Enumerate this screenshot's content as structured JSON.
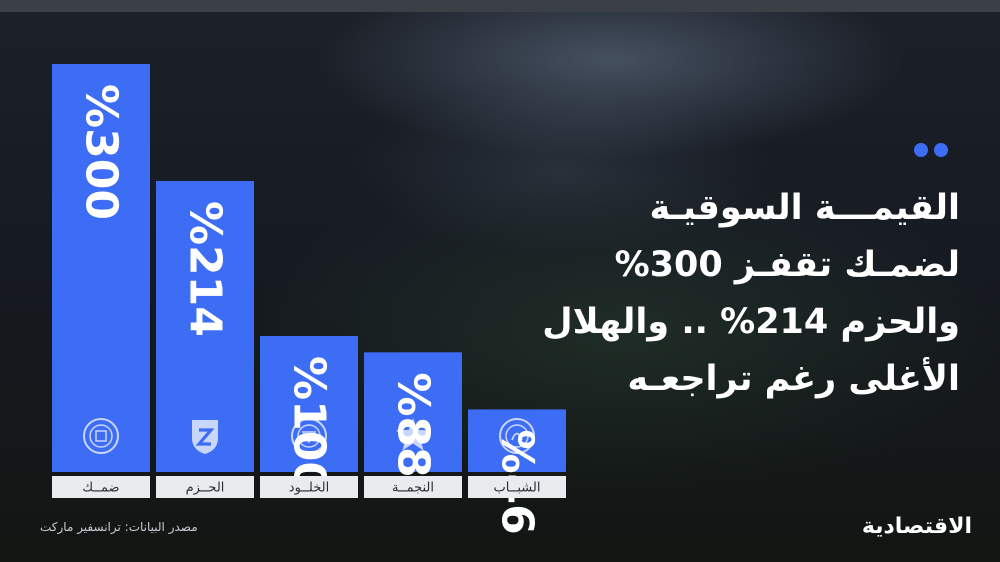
{
  "headline": {
    "line1": "القيمـــة السوقيـة",
    "line2": "لضمـك تقفـز 300%",
    "line3": "والحزم 214% .. والهلال",
    "line4": "الأغلى رغم تراجعـه"
  },
  "source": "مصدر البيانات: ترانسفير ماركت",
  "brand": "الاقتصادية",
  "colors": {
    "bar": "#3d6cf5",
    "label_box": "#e9ebef",
    "background": "#141820",
    "text": "#ffffff"
  },
  "icons": [
    "damac-club-logo-icon",
    "al-hazem-logo-icon",
    "al-kholood-logo-icon",
    "al-najma-star-logo-icon",
    "al-shabab-logo-icon"
  ],
  "chart_data": {
    "type": "bar",
    "categories": [
      "ضمــك",
      "الحــزم",
      "الخلــود",
      "النجمــة",
      "الشبــاب"
    ],
    "values": [
      300,
      214,
      100,
      88,
      46
    ],
    "value_labels": [
      "%300",
      "%214",
      "%100",
      "%88",
      "%46"
    ],
    "unit": "%",
    "title": "",
    "xlabel": "",
    "ylabel": ""
  }
}
